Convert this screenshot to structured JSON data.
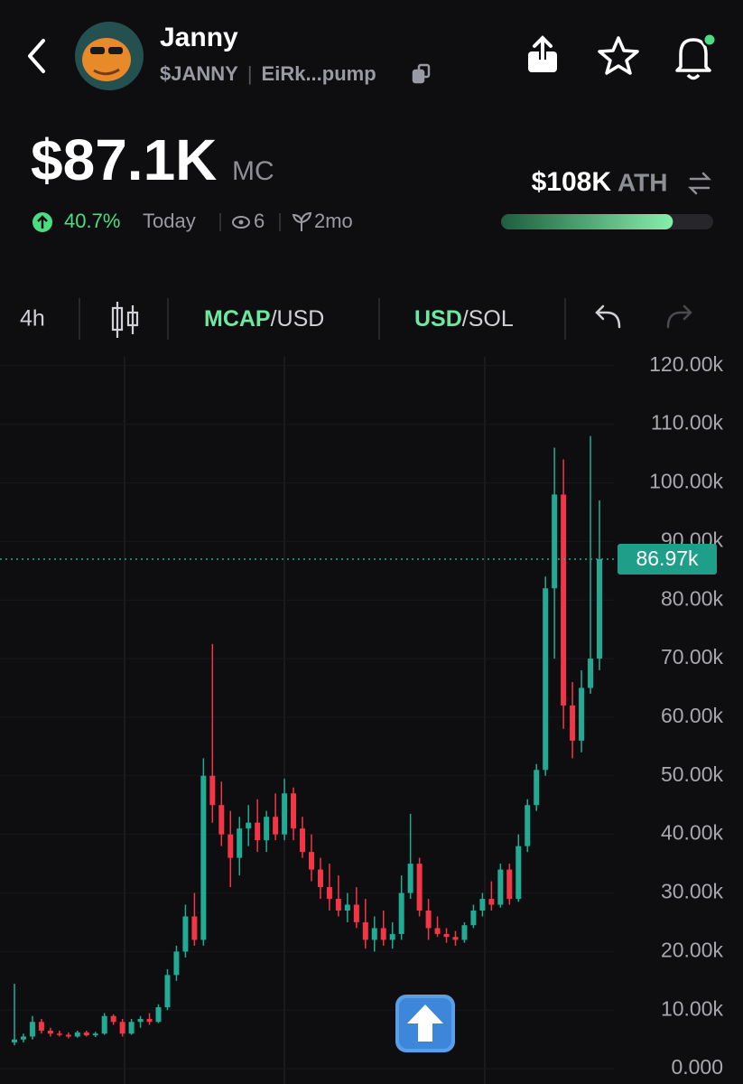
{
  "header": {
    "name": "Janny",
    "ticker": "$JANNY",
    "separator": "|",
    "address": "EiRk...pump"
  },
  "market": {
    "market_cap": "$87.1K",
    "mc_label": "MC",
    "change": "40.7%",
    "period": "Today",
    "views": "6",
    "age": "2mo",
    "ath": "$108K",
    "ath_label": "ATH",
    "ath_progress": 81
  },
  "toolbar": {
    "interval": "4h",
    "mcap": "MCAP",
    "mcap_unit": "/USD",
    "usd": "USD",
    "usd_unit": "/SOL"
  },
  "chart_data": {
    "type": "candlestick",
    "up_color": "#22ab94",
    "down_color": "#f23645",
    "grid": true,
    "ylim": [
      -2600,
      121500
    ],
    "yticks": [
      {
        "value": 0,
        "label": "0.000"
      },
      {
        "value": 10000,
        "label": "10.00k"
      },
      {
        "value": 20000,
        "label": "20.00k"
      },
      {
        "value": 30000,
        "label": "30.00k"
      },
      {
        "value": 40000,
        "label": "40.00k"
      },
      {
        "value": 50000,
        "label": "50.00k"
      },
      {
        "value": 60000,
        "label": "60.00k"
      },
      {
        "value": 70000,
        "label": "70.00k"
      },
      {
        "value": 80000,
        "label": "80.00k"
      },
      {
        "value": 90000,
        "label": "90.00k"
      },
      {
        "value": 100000,
        "label": "100.00k"
      },
      {
        "value": 110000,
        "label": "110.00k"
      },
      {
        "value": 120000,
        "label": "120.00k"
      }
    ],
    "last_price": {
      "value": 86970,
      "label": "86.97k"
    },
    "open": [
      4500,
      5000,
      5500,
      8000,
      6500,
      6000,
      5800,
      5500,
      6200,
      5700,
      6000,
      9000,
      8000,
      6000,
      8000,
      8500,
      8000,
      10500,
      16000,
      20000,
      26000,
      22000,
      50000,
      45000,
      40000,
      36000,
      41000,
      42000,
      39000,
      43000,
      40000,
      47000,
      41000,
      37000,
      34000,
      31000,
      29000,
      27000,
      28000,
      25000,
      22000,
      24000,
      22000,
      23000,
      30000,
      35000,
      27000,
      24000,
      23000,
      22500,
      22000,
      24500,
      27000,
      29000,
      28000,
      34000,
      29000,
      38000,
      45000,
      51000,
      82000,
      98000,
      62000,
      56000,
      65000,
      70000
    ],
    "high": [
      14500,
      6000,
      9000,
      8500,
      7000,
      6500,
      6200,
      6500,
      6500,
      6300,
      9500,
      9300,
      8500,
      8500,
      9000,
      9500,
      11000,
      17000,
      21000,
      28000,
      30000,
      53000,
      72500,
      49000,
      44000,
      43000,
      45000,
      46000,
      44000,
      47000,
      49500,
      48000,
      43000,
      40000,
      36000,
      35000,
      33000,
      30000,
      31000,
      29000,
      26000,
      27000,
      25000,
      33000,
      43500,
      36000,
      29000,
      26000,
      24000,
      23500,
      25000,
      28000,
      30000,
      32000,
      35000,
      35000,
      40000,
      46000,
      52000,
      84000,
      106000,
      104000,
      66000,
      68000,
      108000,
      97000
    ],
    "low": [
      4000,
      4500,
      5000,
      6000,
      5500,
      5500,
      5200,
      5300,
      5500,
      5400,
      5800,
      7500,
      5500,
      5800,
      7000,
      7500,
      7800,
      10000,
      15000,
      19000,
      21000,
      21000,
      42000,
      38000,
      31000,
      33000,
      38000,
      37000,
      37000,
      39000,
      39000,
      39000,
      36000,
      32000,
      29000,
      27000,
      26000,
      25000,
      24000,
      20500,
      20000,
      21000,
      20500,
      22000,
      29000,
      26000,
      22000,
      22500,
      21500,
      21000,
      21500,
      24000,
      26000,
      27000,
      27500,
      28000,
      28500,
      37000,
      44000,
      50000,
      70000,
      58000,
      53000,
      54000,
      64000,
      68000
    ],
    "close": [
      5000,
      5500,
      8000,
      6500,
      6000,
      5800,
      5500,
      6200,
      5700,
      6000,
      9000,
      8000,
      6000,
      8000,
      8500,
      8000,
      10500,
      16000,
      20000,
      26000,
      22000,
      50000,
      45000,
      40000,
      36000,
      41000,
      42000,
      39000,
      43000,
      40000,
      47000,
      41000,
      37000,
      34000,
      31000,
      29000,
      27000,
      28000,
      25000,
      22000,
      24000,
      22000,
      23000,
      30000,
      35000,
      27000,
      24000,
      23000,
      22500,
      22000,
      24500,
      27000,
      29000,
      28000,
      34000,
      29000,
      38000,
      45000,
      51000,
      82000,
      98000,
      62000,
      56000,
      65000,
      70000,
      86970
    ]
  }
}
